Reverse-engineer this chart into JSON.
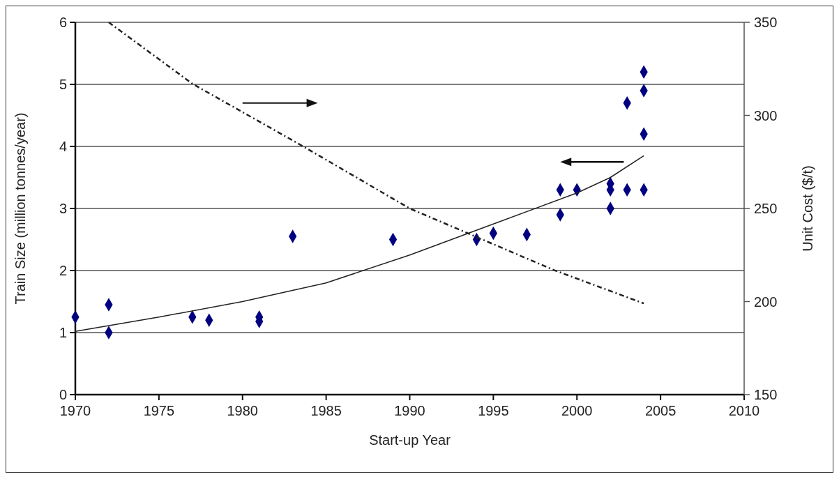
{
  "chart_data": {
    "type": "scatter",
    "xlabel": "Start-up Year",
    "ylabel": "Train Size (million tonnes/year)",
    "y2label": "Unit Cost ($/t)",
    "xlim": [
      1970,
      2010
    ],
    "xticks": [
      1970,
      1975,
      1980,
      1985,
      1990,
      1995,
      2000,
      2005,
      2010
    ],
    "ylim": [
      0,
      6
    ],
    "yticks": [
      0,
      1,
      2,
      3,
      4,
      5,
      6
    ],
    "y2lim": [
      150,
      350
    ],
    "y2ticks": [
      150,
      200,
      250,
      300,
      350
    ],
    "grid": "y",
    "series": [
      {
        "color": "#000080",
        "marker": "diamond",
        "x": [
          1970,
          1972,
          1972,
          1977,
          1978,
          1981,
          1981,
          1983,
          1989,
          1994,
          1995,
          1997,
          1999,
          1999,
          2000,
          2002,
          2002,
          2002,
          2003,
          2003,
          2004,
          2004,
          2004,
          2004
        ],
        "values": [
          1.25,
          1.45,
          1.0,
          1.25,
          1.2,
          1.25,
          1.18,
          2.55,
          2.5,
          2.5,
          2.6,
          2.58,
          3.3,
          2.9,
          3.3,
          3.4,
          3.3,
          3.0,
          4.7,
          3.3,
          5.2,
          4.9,
          4.2,
          3.3
        ]
      },
      {
        "type": "line",
        "color": "#222222",
        "line_style": "solid",
        "x": [
          1970,
          1975,
          1980,
          1985,
          1990,
          1995,
          2000,
          2002,
          2004
        ],
        "values": [
          1.02,
          1.25,
          1.5,
          1.8,
          2.25,
          2.75,
          3.25,
          3.5,
          3.85
        ]
      },
      {
        "type": "line",
        "axis": "y2",
        "color": "#222222",
        "line_style": "dashed",
        "x": [
          1972,
          1977,
          1983.5,
          1990,
          1998.6,
          2004
        ],
        "values": [
          350,
          317,
          284,
          250,
          217,
          199
        ]
      }
    ]
  }
}
